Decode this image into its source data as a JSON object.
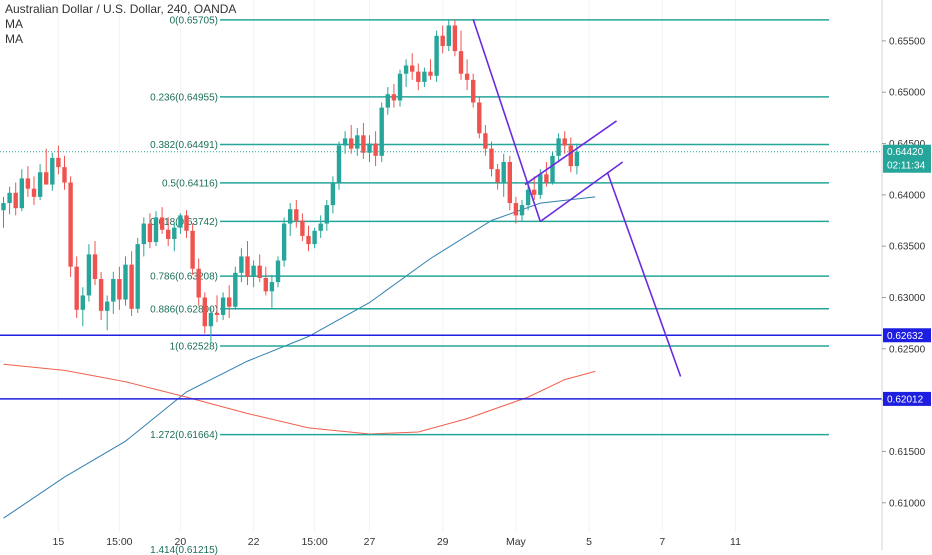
{
  "header": {
    "symbol_title": "Australian Dollar / U.S. Dollar, 240, OANDA",
    "indicators": [
      "MA",
      "MA"
    ]
  },
  "chart_data": {
    "type": "candlestick",
    "y_axis": {
      "ylim": [
        0.6054,
        0.6583
      ],
      "ticks": [
        "0.65500",
        "0.65000",
        "0.64500",
        "0.64000",
        "0.63500",
        "0.63000",
        "0.62500",
        "0.62000",
        "0.61500",
        "0.61000"
      ],
      "tick_values": [
        0.655,
        0.65,
        0.645,
        0.64,
        0.635,
        0.63,
        0.625,
        0.62,
        0.615,
        0.61
      ]
    },
    "x_axis": {
      "ticks": [
        "15",
        "15:00",
        "20",
        "22",
        "15:00",
        "27",
        "29",
        "May",
        "5",
        "7",
        "11"
      ],
      "tick_index": [
        9,
        19,
        29,
        41,
        51,
        60,
        72,
        84,
        96,
        108,
        120
      ]
    },
    "fibonacci": {
      "color": "#26a69a",
      "levels": [
        {
          "label": "0(0.65705)",
          "value": 0.65705
        },
        {
          "label": "0.236(0.64955)",
          "value": 0.64955
        },
        {
          "label": "0.382(0.64491)",
          "value": 0.64491
        },
        {
          "label": "0.5(0.64116)",
          "value": 0.64116
        },
        {
          "label": "0.618(0.63742)",
          "value": 0.63742
        },
        {
          "label": "0.786(0.63208)",
          "value": 0.63208
        },
        {
          "label": "0.886(0.62890)",
          "value": 0.6289
        },
        {
          "label": "1(0.62528)",
          "value": 0.62528
        },
        {
          "label": "1.272(0.61664)",
          "value": 0.61664
        }
      ],
      "partial_label": "1.414(0.61215)"
    },
    "horizontal_lines": [
      {
        "value": 0.62632,
        "label": "0.62632",
        "color": "#1e1ee0"
      },
      {
        "value": 0.62012,
        "label": "0.62012",
        "color": "#1e1ee0"
      }
    ],
    "last_price": {
      "value": 0.6442,
      "label": "0.64420",
      "countdown": "02:11:34",
      "color": "#26a69a"
    },
    "candles": [
      {
        "o": 0.6385,
        "h": 0.6398,
        "l": 0.6368,
        "c": 0.6392
      },
      {
        "o": 0.6392,
        "h": 0.6408,
        "l": 0.6381,
        "c": 0.6402
      },
      {
        "o": 0.6402,
        "h": 0.6412,
        "l": 0.638,
        "c": 0.6387
      },
      {
        "o": 0.6387,
        "h": 0.6425,
        "l": 0.6384,
        "c": 0.6416
      },
      {
        "o": 0.6416,
        "h": 0.6428,
        "l": 0.6398,
        "c": 0.6406
      },
      {
        "o": 0.6406,
        "h": 0.6418,
        "l": 0.639,
        "c": 0.6398
      },
      {
        "o": 0.6398,
        "h": 0.643,
        "l": 0.6395,
        "c": 0.6422
      },
      {
        "o": 0.6422,
        "h": 0.6445,
        "l": 0.6412,
        "c": 0.641
      },
      {
        "o": 0.641,
        "h": 0.6441,
        "l": 0.6404,
        "c": 0.6436
      },
      {
        "o": 0.6436,
        "h": 0.6448,
        "l": 0.642,
        "c": 0.6427
      },
      {
        "o": 0.6427,
        "h": 0.6438,
        "l": 0.6405,
        "c": 0.6412
      },
      {
        "o": 0.6412,
        "h": 0.6418,
        "l": 0.632,
        "c": 0.633
      },
      {
        "o": 0.633,
        "h": 0.634,
        "l": 0.628,
        "c": 0.6288
      },
      {
        "o": 0.6288,
        "h": 0.631,
        "l": 0.6272,
        "c": 0.6302
      },
      {
        "o": 0.6302,
        "h": 0.6352,
        "l": 0.6296,
        "c": 0.6342
      },
      {
        "o": 0.6342,
        "h": 0.6355,
        "l": 0.6312,
        "c": 0.6318
      },
      {
        "o": 0.6318,
        "h": 0.6325,
        "l": 0.6278,
        "c": 0.6287
      },
      {
        "o": 0.6287,
        "h": 0.6302,
        "l": 0.6268,
        "c": 0.6296
      },
      {
        "o": 0.6296,
        "h": 0.6325,
        "l": 0.6284,
        "c": 0.6318
      },
      {
        "o": 0.6318,
        "h": 0.633,
        "l": 0.6288,
        "c": 0.6298
      },
      {
        "o": 0.6298,
        "h": 0.634,
        "l": 0.6292,
        "c": 0.6332
      },
      {
        "o": 0.6332,
        "h": 0.6345,
        "l": 0.6282,
        "c": 0.6289
      },
      {
        "o": 0.6289,
        "h": 0.6358,
        "l": 0.6285,
        "c": 0.6352
      },
      {
        "o": 0.6352,
        "h": 0.6378,
        "l": 0.634,
        "c": 0.6372
      },
      {
        "o": 0.6372,
        "h": 0.6382,
        "l": 0.6348,
        "c": 0.6354
      },
      {
        "o": 0.6354,
        "h": 0.6384,
        "l": 0.635,
        "c": 0.6378
      },
      {
        "o": 0.6378,
        "h": 0.6388,
        "l": 0.6362,
        "c": 0.6366
      },
      {
        "o": 0.6366,
        "h": 0.6378,
        "l": 0.635,
        "c": 0.6357
      },
      {
        "o": 0.6357,
        "h": 0.6372,
        "l": 0.6345,
        "c": 0.6368
      },
      {
        "o": 0.6368,
        "h": 0.6382,
        "l": 0.6362,
        "c": 0.638
      },
      {
        "o": 0.638,
        "h": 0.6385,
        "l": 0.6358,
        "c": 0.6365
      },
      {
        "o": 0.6365,
        "h": 0.6372,
        "l": 0.6322,
        "c": 0.6328
      },
      {
        "o": 0.6328,
        "h": 0.6338,
        "l": 0.6292,
        "c": 0.63
      },
      {
        "o": 0.63,
        "h": 0.6305,
        "l": 0.6265,
        "c": 0.6272
      },
      {
        "o": 0.6272,
        "h": 0.629,
        "l": 0.6255,
        "c": 0.6285
      },
      {
        "o": 0.6285,
        "h": 0.6302,
        "l": 0.6276,
        "c": 0.6283
      },
      {
        "o": 0.6283,
        "h": 0.6305,
        "l": 0.6278,
        "c": 0.63
      },
      {
        "o": 0.63,
        "h": 0.6312,
        "l": 0.628,
        "c": 0.6291
      },
      {
        "o": 0.6291,
        "h": 0.633,
        "l": 0.6288,
        "c": 0.6324
      },
      {
        "o": 0.6324,
        "h": 0.6348,
        "l": 0.6315,
        "c": 0.634
      },
      {
        "o": 0.634,
        "h": 0.6355,
        "l": 0.6312,
        "c": 0.632
      },
      {
        "o": 0.632,
        "h": 0.6336,
        "l": 0.631,
        "c": 0.6331
      },
      {
        "o": 0.6331,
        "h": 0.6342,
        "l": 0.6315,
        "c": 0.6319
      },
      {
        "o": 0.6319,
        "h": 0.633,
        "l": 0.6302,
        "c": 0.6306
      },
      {
        "o": 0.6306,
        "h": 0.6322,
        "l": 0.629,
        "c": 0.6315
      },
      {
        "o": 0.6315,
        "h": 0.634,
        "l": 0.631,
        "c": 0.6336
      },
      {
        "o": 0.6336,
        "h": 0.6378,
        "l": 0.633,
        "c": 0.6372
      },
      {
        "o": 0.6372,
        "h": 0.6392,
        "l": 0.636,
        "c": 0.6386
      },
      {
        "o": 0.6386,
        "h": 0.6395,
        "l": 0.6368,
        "c": 0.6375
      },
      {
        "o": 0.6375,
        "h": 0.6382,
        "l": 0.6355,
        "c": 0.636
      },
      {
        "o": 0.636,
        "h": 0.637,
        "l": 0.6345,
        "c": 0.6352
      },
      {
        "o": 0.6352,
        "h": 0.6368,
        "l": 0.6348,
        "c": 0.6365
      },
      {
        "o": 0.6365,
        "h": 0.638,
        "l": 0.6358,
        "c": 0.6372
      },
      {
        "o": 0.6372,
        "h": 0.6395,
        "l": 0.6365,
        "c": 0.639
      },
      {
        "o": 0.639,
        "h": 0.6418,
        "l": 0.6382,
        "c": 0.6412
      },
      {
        "o": 0.6412,
        "h": 0.6452,
        "l": 0.6405,
        "c": 0.6448
      },
      {
        "o": 0.6448,
        "h": 0.6462,
        "l": 0.644,
        "c": 0.6455
      },
      {
        "o": 0.6455,
        "h": 0.6468,
        "l": 0.644,
        "c": 0.6445
      },
      {
        "o": 0.6445,
        "h": 0.6465,
        "l": 0.6438,
        "c": 0.6458
      },
      {
        "o": 0.6458,
        "h": 0.647,
        "l": 0.6435,
        "c": 0.6441
      },
      {
        "o": 0.6441,
        "h": 0.6458,
        "l": 0.6432,
        "c": 0.645
      },
      {
        "o": 0.645,
        "h": 0.6462,
        "l": 0.6428,
        "c": 0.6438
      },
      {
        "o": 0.6438,
        "h": 0.649,
        "l": 0.6432,
        "c": 0.6485
      },
      {
        "o": 0.6485,
        "h": 0.6505,
        "l": 0.6478,
        "c": 0.6498
      },
      {
        "o": 0.6498,
        "h": 0.6508,
        "l": 0.6485,
        "c": 0.6492
      },
      {
        "o": 0.6492,
        "h": 0.6522,
        "l": 0.6486,
        "c": 0.6518
      },
      {
        "o": 0.6518,
        "h": 0.6532,
        "l": 0.6505,
        "c": 0.6526
      },
      {
        "o": 0.6526,
        "h": 0.6538,
        "l": 0.6512,
        "c": 0.652
      },
      {
        "o": 0.652,
        "h": 0.6528,
        "l": 0.6502,
        "c": 0.651
      },
      {
        "o": 0.651,
        "h": 0.6524,
        "l": 0.6505,
        "c": 0.652
      },
      {
        "o": 0.652,
        "h": 0.6532,
        "l": 0.6512,
        "c": 0.6516
      },
      {
        "o": 0.6516,
        "h": 0.656,
        "l": 0.651,
        "c": 0.6555
      },
      {
        "o": 0.6555,
        "h": 0.6565,
        "l": 0.6538,
        "c": 0.6545
      },
      {
        "o": 0.6545,
        "h": 0.657,
        "l": 0.654,
        "c": 0.6565
      },
      {
        "o": 0.6565,
        "h": 0.6571,
        "l": 0.6535,
        "c": 0.654
      },
      {
        "o": 0.654,
        "h": 0.656,
        "l": 0.6512,
        "c": 0.6518
      },
      {
        "o": 0.6518,
        "h": 0.6532,
        "l": 0.6502,
        "c": 0.6512
      },
      {
        "o": 0.6512,
        "h": 0.6518,
        "l": 0.6485,
        "c": 0.649
      },
      {
        "o": 0.649,
        "h": 0.6495,
        "l": 0.6455,
        "c": 0.646
      },
      {
        "o": 0.646,
        "h": 0.6468,
        "l": 0.6438,
        "c": 0.6445
      },
      {
        "o": 0.6445,
        "h": 0.6452,
        "l": 0.6418,
        "c": 0.6425
      },
      {
        "o": 0.6425,
        "h": 0.643,
        "l": 0.6405,
        "c": 0.6412
      },
      {
        "o": 0.6412,
        "h": 0.644,
        "l": 0.6398,
        "c": 0.6432
      },
      {
        "o": 0.6432,
        "h": 0.6438,
        "l": 0.6385,
        "c": 0.6392
      },
      {
        "o": 0.6392,
        "h": 0.6398,
        "l": 0.6372,
        "c": 0.638
      },
      {
        "o": 0.638,
        "h": 0.6395,
        "l": 0.6375,
        "c": 0.639
      },
      {
        "o": 0.639,
        "h": 0.6412,
        "l": 0.6385,
        "c": 0.6405
      },
      {
        "o": 0.6405,
        "h": 0.6418,
        "l": 0.6395,
        "c": 0.64
      },
      {
        "o": 0.64,
        "h": 0.6425,
        "l": 0.6396,
        "c": 0.642
      },
      {
        "o": 0.642,
        "h": 0.6432,
        "l": 0.6408,
        "c": 0.6412
      },
      {
        "o": 0.6412,
        "h": 0.6442,
        "l": 0.641,
        "c": 0.6438
      },
      {
        "o": 0.6438,
        "h": 0.646,
        "l": 0.6432,
        "c": 0.6455
      },
      {
        "o": 0.6455,
        "h": 0.6462,
        "l": 0.644,
        "c": 0.6448
      },
      {
        "o": 0.6448,
        "h": 0.6456,
        "l": 0.6422,
        "c": 0.6428
      },
      {
        "o": 0.6428,
        "h": 0.645,
        "l": 0.642,
        "c": 0.6442
      }
    ],
    "moving_averages": [
      {
        "name": "MA",
        "color": "#2f7fb0",
        "points": [
          [
            0,
            0.6085
          ],
          [
            10,
            0.6125
          ],
          [
            20,
            0.616
          ],
          [
            30,
            0.6208
          ],
          [
            40,
            0.6238
          ],
          [
            50,
            0.6262
          ],
          [
            60,
            0.6295
          ],
          [
            70,
            0.6338
          ],
          [
            80,
            0.6375
          ],
          [
            88,
            0.6392
          ],
          [
            97,
            0.6398
          ]
        ]
      },
      {
        "name": "MA",
        "color": "#f0604d",
        "points": [
          [
            0,
            0.6235
          ],
          [
            10,
            0.6229
          ],
          [
            20,
            0.6218
          ],
          [
            30,
            0.6203
          ],
          [
            40,
            0.6187
          ],
          [
            50,
            0.6173
          ],
          [
            60,
            0.6167
          ],
          [
            68,
            0.6169
          ],
          [
            76,
            0.6182
          ],
          [
            86,
            0.6203
          ],
          [
            92,
            0.622
          ],
          [
            97,
            0.6228
          ]
        ]
      }
    ],
    "drawings": {
      "color": "#6b2be0",
      "lines": [
        {
          "x1": 77,
          "y1": 0.6571,
          "x2": 88,
          "y2": 0.6374
        },
        {
          "x1": 85.5,
          "y1": 0.641,
          "x2": 100.5,
          "y2": 0.6472
        },
        {
          "x1": 88,
          "y1": 0.6374,
          "x2": 101.5,
          "y2": 0.6432
        },
        {
          "x1": 99,
          "y1": 0.6422,
          "x2": 111,
          "y2": 0.6223
        }
      ]
    }
  }
}
